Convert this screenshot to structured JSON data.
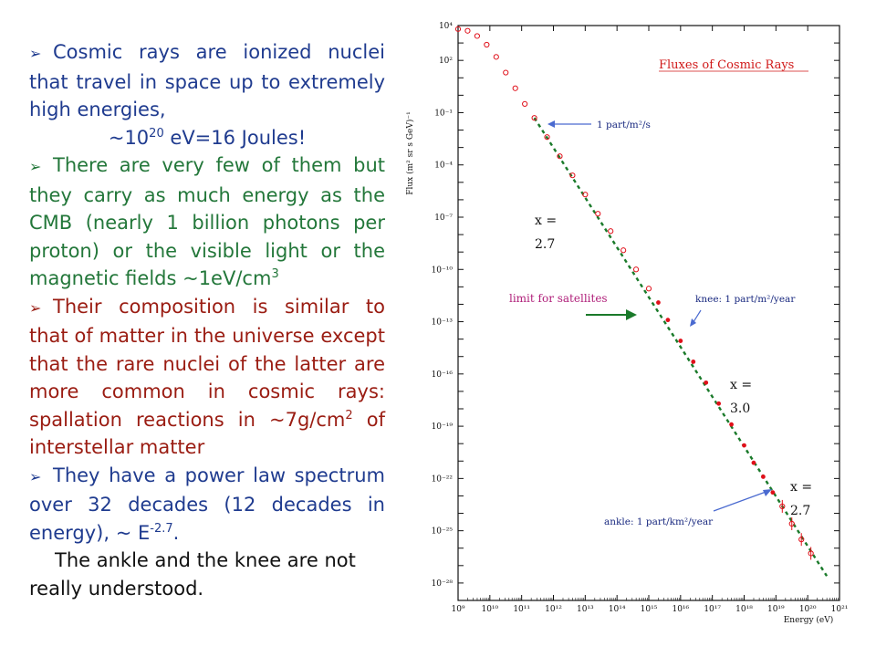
{
  "bullets": {
    "b1": {
      "marker": "➢",
      "text": "Cosmic rays are ionized nuclei that travel in space up to extremely high energies,",
      "energy_prefix": "~10",
      "energy_exp": "20",
      "energy_suffix": " eV=16 Joules!"
    },
    "b2": {
      "marker": "➢",
      "text": "There are very few of them but they carry as much energy as the CMB (nearly 1 billion photons per proton) or the visible light or the magnetic fields ~1eV/cm",
      "exp": "3"
    },
    "b3": {
      "marker": "➢",
      "text": "Their composition is similar to that of matter in the universe except that the rare nuclei of the latter are more common in cosmic rays: spallation reactions in ~7g/cm",
      "exp": "2",
      "text_after": " of interstellar matter"
    },
    "b4": {
      "marker": "➢",
      "text": "They have a power law spectrum over 32 decades (12 decades in energy), ~ E",
      "exp": "-2.7",
      "text_after": "."
    },
    "closing": "The ankle and the knee are not really understood."
  },
  "figure": {
    "title": "Fluxes of Cosmic Rays",
    "y_axis_label": "Flux (m² sr s GeV)⁻¹",
    "x_axis_label": "Energy (eV)",
    "annotations": {
      "one_part_m2_s": "1 part/m²/s",
      "knee": "knee: 1 part/m²/year",
      "ankle": "ankle: 1 part/km²/year",
      "limit_for_satellites": "limit for satellites"
    },
    "slope_labels": [
      {
        "line1": "x =",
        "line2": "2.7"
      },
      {
        "line1": "x =",
        "line2": "3.0"
      },
      {
        "line1": "x =",
        "line2": "2.7"
      }
    ]
  },
  "colors": {
    "bullet1": "#1f3b8f",
    "bullet2": "#23773a",
    "bullet3": "#9a1c12",
    "bullet4": "#1f3b8f",
    "data_points": "#e0101a",
    "fit_line": "#1a7a2a",
    "annotation_arrow": "#4a6ad0",
    "limit_arrow": "#1a7a2a",
    "title": "#d01818"
  },
  "chart_data": {
    "type": "scatter",
    "title": "Fluxes of Cosmic Rays",
    "xlabel": "Energy (eV)",
    "ylabel": "Flux (m² sr s GeV)⁻¹",
    "x_scale": "log",
    "y_scale": "log",
    "xlim": [
      1000000000.0,
      1e+21
    ],
    "ylim": [
      1e-29,
      10000.0
    ],
    "x_tick_labels": [
      "10⁹",
      "10¹⁰",
      "10¹¹",
      "10¹²",
      "10¹³",
      "10¹⁴",
      "10¹⁵",
      "10¹⁶",
      "10¹⁷",
      "10¹⁸",
      "10¹⁹",
      "10²⁰",
      "10²¹"
    ],
    "y_tick_labels": [
      "10⁴",
      "10²",
      "10⁻¹",
      "10⁻⁴",
      "10⁻⁷",
      "10⁻¹⁰",
      "10⁻¹³",
      "10⁻¹⁶",
      "10⁻¹⁹",
      "10⁻²²",
      "10⁻²⁵",
      "10⁻²⁸"
    ],
    "series": [
      {
        "x_log10": [
          9.0,
          9.3,
          9.6,
          9.9,
          10.2,
          10.5,
          10.8,
          11.1,
          11.4,
          11.8,
          12.2,
          12.6,
          13.0,
          13.4,
          13.8,
          14.2,
          14.6,
          15.0,
          15.3,
          15.6,
          16.0,
          16.4,
          16.8,
          17.2,
          17.6,
          18.0,
          18.3,
          18.6,
          18.9,
          19.2,
          19.5,
          19.8,
          20.1
        ],
        "y_log10": [
          3.8,
          3.7,
          3.4,
          2.9,
          2.2,
          1.3,
          0.4,
          -0.5,
          -1.3,
          -2.4,
          -3.5,
          -4.6,
          -5.7,
          -6.8,
          -7.8,
          -8.9,
          -10.0,
          -11.1,
          -11.9,
          -12.9,
          -14.1,
          -15.3,
          -16.5,
          -17.7,
          -18.9,
          -20.1,
          -21.1,
          -21.9,
          -22.8,
          -23.6,
          -24.6,
          -25.5,
          -26.3
        ]
      }
    ],
    "power_law_slopes": [
      "2.7",
      "3.0",
      "2.7"
    ]
  }
}
